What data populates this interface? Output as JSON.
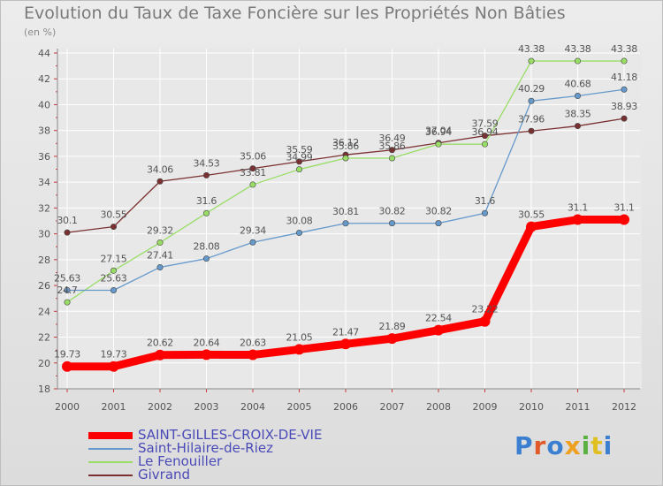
{
  "title": "Evolution du Taux de Taxe Foncière sur les Propriétés Non Bâties",
  "unit_label": "(en %)",
  "logo_text": "Proxiti",
  "chart_data": {
    "type": "line",
    "title": "Evolution du Taux de Taxe Foncière sur les Propriétés Non Bâties",
    "ylabel": "(en %)",
    "xlabel": "",
    "x": [
      "2000",
      "2001",
      "2002",
      "2003",
      "2004",
      "2005",
      "2006",
      "2007",
      "2008",
      "2009",
      "2010",
      "2011",
      "2012"
    ],
    "ylim": [
      18,
      44
    ],
    "yticks": [
      18,
      20,
      22,
      24,
      26,
      28,
      30,
      32,
      34,
      36,
      38,
      40,
      42,
      44
    ],
    "grid": true,
    "legend_position": "bottom-left",
    "series": [
      {
        "name": "SAINT-GILLES-CROIX-DE-VIE",
        "color": "#ff0000",
        "values": [
          19.73,
          19.73,
          20.62,
          20.64,
          20.63,
          21.05,
          21.47,
          21.89,
          22.54,
          23.22,
          30.55,
          31.1,
          31.1
        ],
        "labels": [
          "19.73",
          "19.73",
          "20.62",
          "20.64",
          "20.63",
          "21.05",
          "21.47",
          "21.89",
          "22.54",
          "23.22",
          "30.55",
          "31.1",
          "31.1"
        ]
      },
      {
        "name": "Saint-Hilaire-de-Riez",
        "color": "#6699cc",
        "values": [
          25.63,
          25.63,
          27.41,
          28.08,
          29.34,
          30.08,
          30.81,
          30.82,
          30.82,
          31.6,
          40.29,
          40.68,
          41.18
        ],
        "labels": [
          "25.63",
          "25.63",
          "27.41",
          "28.08",
          "29.34",
          "30.08",
          "30.81",
          "30.82",
          "30.82",
          "31.6",
          "40.29",
          "40.68",
          "41.18"
        ]
      },
      {
        "name": "Le Fenouiller",
        "color": "#99dd66",
        "values": [
          24.7,
          27.15,
          29.32,
          31.6,
          33.81,
          34.99,
          35.86,
          35.86,
          36.94,
          36.94,
          43.38,
          43.38,
          43.38
        ],
        "labels": [
          "24.7",
          "27.15",
          "29.32",
          "31.6",
          "33.81",
          "34.99",
          "35.86",
          "35.86",
          "36.94",
          "36.94",
          "43.38",
          "43.38",
          "43.38"
        ]
      },
      {
        "name": "Givrand",
        "color": "#7a3030",
        "values": [
          30.1,
          30.55,
          34.06,
          34.53,
          35.06,
          35.59,
          36.12,
          36.49,
          37.04,
          37.59,
          37.96,
          38.35,
          38.93
        ],
        "labels": [
          "30.1",
          "30.55",
          "34.06",
          "34.53",
          "35.06",
          "35.59",
          "36.12",
          "36.49",
          "37.04",
          "37.59",
          "37.96",
          "38.35",
          "38.93"
        ]
      }
    ]
  }
}
